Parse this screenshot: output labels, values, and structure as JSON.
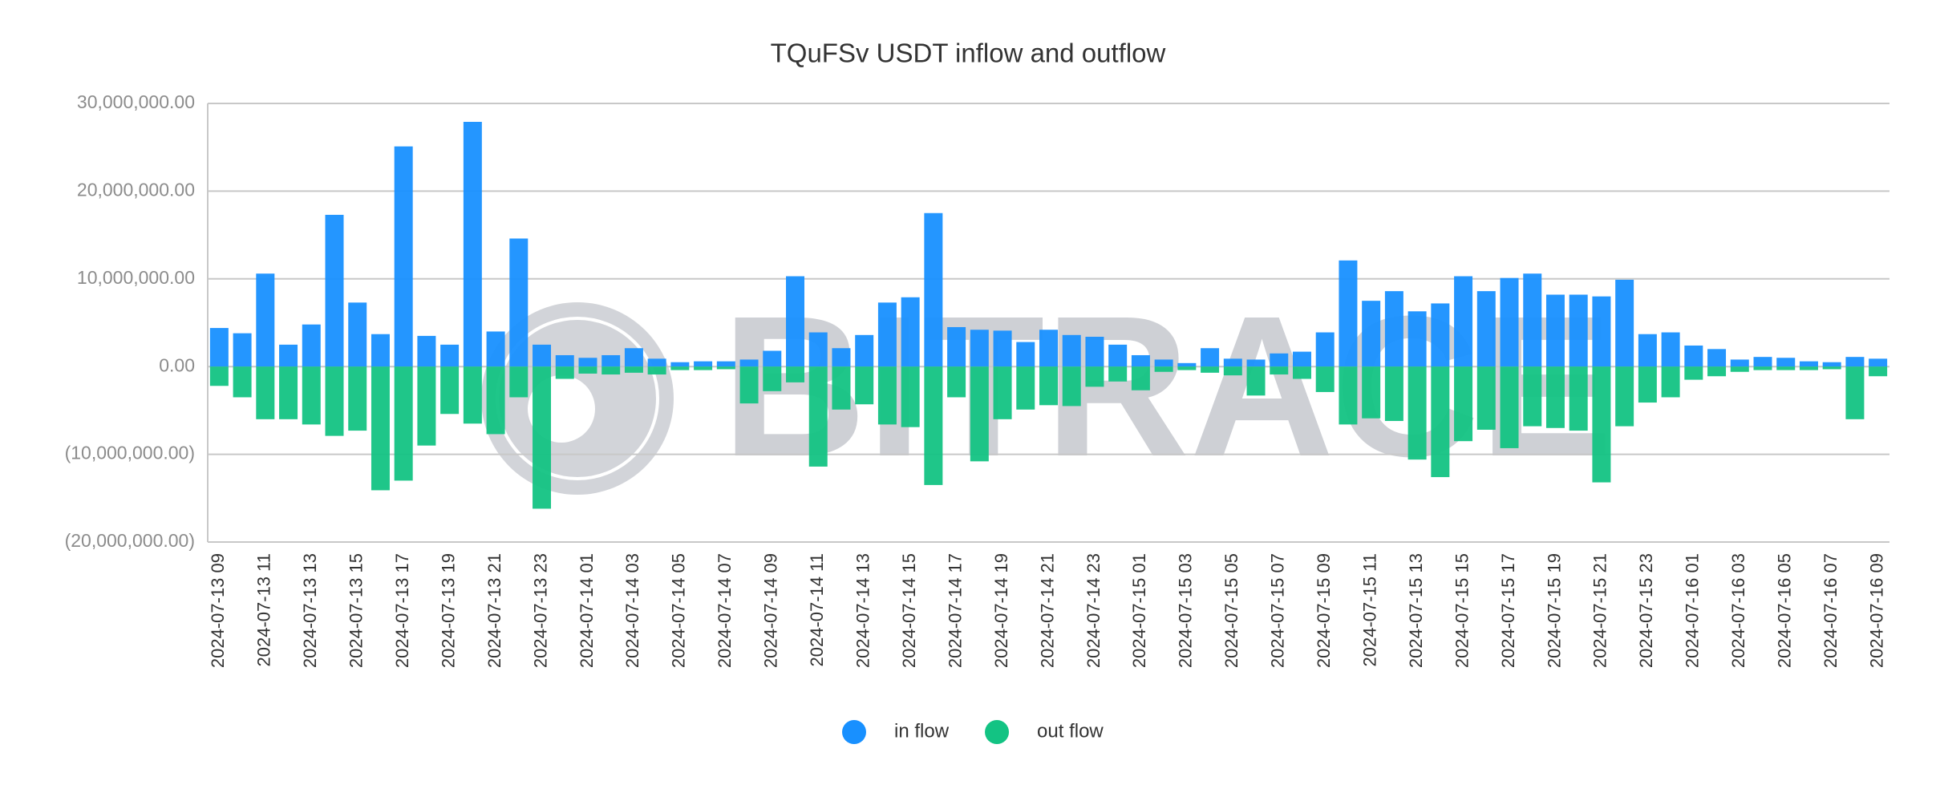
{
  "chart_data": {
    "type": "bar",
    "title": "TQuFSv USDT inflow and outflow",
    "watermark": "BITRACE",
    "categories": [
      "2024-07-13 09",
      null,
      "2024-07-13 11",
      null,
      "2024-07-13 13",
      null,
      "2024-07-13 15",
      null,
      "2024-07-13 17",
      null,
      "2024-07-13 19",
      null,
      "2024-07-13 21",
      null,
      "2024-07-13 23",
      null,
      "2024-07-14 01",
      null,
      "2024-07-14 03",
      null,
      "2024-07-14 05",
      null,
      "2024-07-14 07",
      null,
      "2024-07-14 09",
      null,
      "2024-07-14 11",
      null,
      "2024-07-14 13",
      null,
      "2024-07-14 15",
      null,
      "2024-07-14 17",
      null,
      "2024-07-14 19",
      null,
      "2024-07-14 21",
      null,
      "2024-07-14 23",
      null,
      "2024-07-15 01",
      null,
      "2024-07-15 03",
      null,
      "2024-07-15 05",
      null,
      "2024-07-15 07",
      null,
      "2024-07-15 09",
      null,
      "2024-07-15 11",
      null,
      "2024-07-15 13",
      null,
      "2024-07-15 15",
      null,
      "2024-07-15 17",
      null,
      "2024-07-15 19",
      null,
      "2024-07-15 21",
      null,
      "2024-07-15 23",
      null,
      "2024-07-16 01",
      null,
      "2024-07-16 03",
      null,
      "2024-07-16 05",
      null,
      "2024-07-16 07",
      null,
      "2024-07-16 09"
    ],
    "series": [
      {
        "name": "in flow",
        "color": "#1890ff",
        "values": [
          4400000,
          3800000,
          10600000,
          2500000,
          4800000,
          17300000,
          7300000,
          3700000,
          25100000,
          3500000,
          2500000,
          27900000,
          4000000,
          14600000,
          2500000,
          1300000,
          1000000,
          1300000,
          2100000,
          900000,
          500000,
          600000,
          600000,
          800000,
          1800000,
          10300000,
          3900000,
          2100000,
          3600000,
          7300000,
          7900000,
          17500000,
          4500000,
          4200000,
          4100000,
          2800000,
          4200000,
          3600000,
          3400000,
          2500000,
          1300000,
          800000,
          400000,
          2100000,
          900000,
          800000,
          1500000,
          1700000,
          3900000,
          12100000,
          7500000,
          8600000,
          6300000,
          7200000,
          10300000,
          8600000,
          10100000,
          10600000,
          8200000,
          8200000,
          8000000,
          9900000,
          3700000,
          3900000,
          2400000,
          2000000,
          800000,
          1100000,
          1000000,
          600000,
          500000,
          1100000,
          900000
        ]
      },
      {
        "name": "out flow",
        "color": "#13c383",
        "values": [
          -2200000,
          -3500000,
          -6000000,
          -6000000,
          -6600000,
          -7900000,
          -7300000,
          -14100000,
          -13000000,
          -9000000,
          -5400000,
          -6500000,
          -7700000,
          -3500000,
          -16200000,
          -1400000,
          -800000,
          -900000,
          -700000,
          -900000,
          -400000,
          -400000,
          -300000,
          -4200000,
          -2800000,
          -1800000,
          -11400000,
          -4900000,
          -4300000,
          -6600000,
          -6900000,
          -13500000,
          -3500000,
          -10800000,
          -6000000,
          -4900000,
          -4400000,
          -4500000,
          -2300000,
          -1700000,
          -2700000,
          -600000,
          -400000,
          -700000,
          -1000000,
          -3300000,
          -900000,
          -1400000,
          -2900000,
          -6600000,
          -5900000,
          -6200000,
          -10600000,
          -12600000,
          -8500000,
          -7200000,
          -9300000,
          -6800000,
          -7000000,
          -7300000,
          -13200000,
          -6800000,
          -4100000,
          -3500000,
          -1500000,
          -1100000,
          -600000,
          -400000,
          -400000,
          -400000,
          -300000,
          -6000000,
          -1100000
        ]
      }
    ],
    "ylim": [
      -20000000,
      30000000
    ],
    "yticks": [
      {
        "value": -20000000,
        "label": "(20,000,000.00)"
      },
      {
        "value": -10000000,
        "label": "(10,000,000.00)"
      },
      {
        "value": 0,
        "label": "0.00"
      },
      {
        "value": 10000000,
        "label": "10,000,000.00"
      },
      {
        "value": 20000000,
        "label": "20,000,000.00"
      },
      {
        "value": 30000000,
        "label": "30,000,000.00"
      }
    ],
    "grid": true,
    "legend": "bottom"
  }
}
